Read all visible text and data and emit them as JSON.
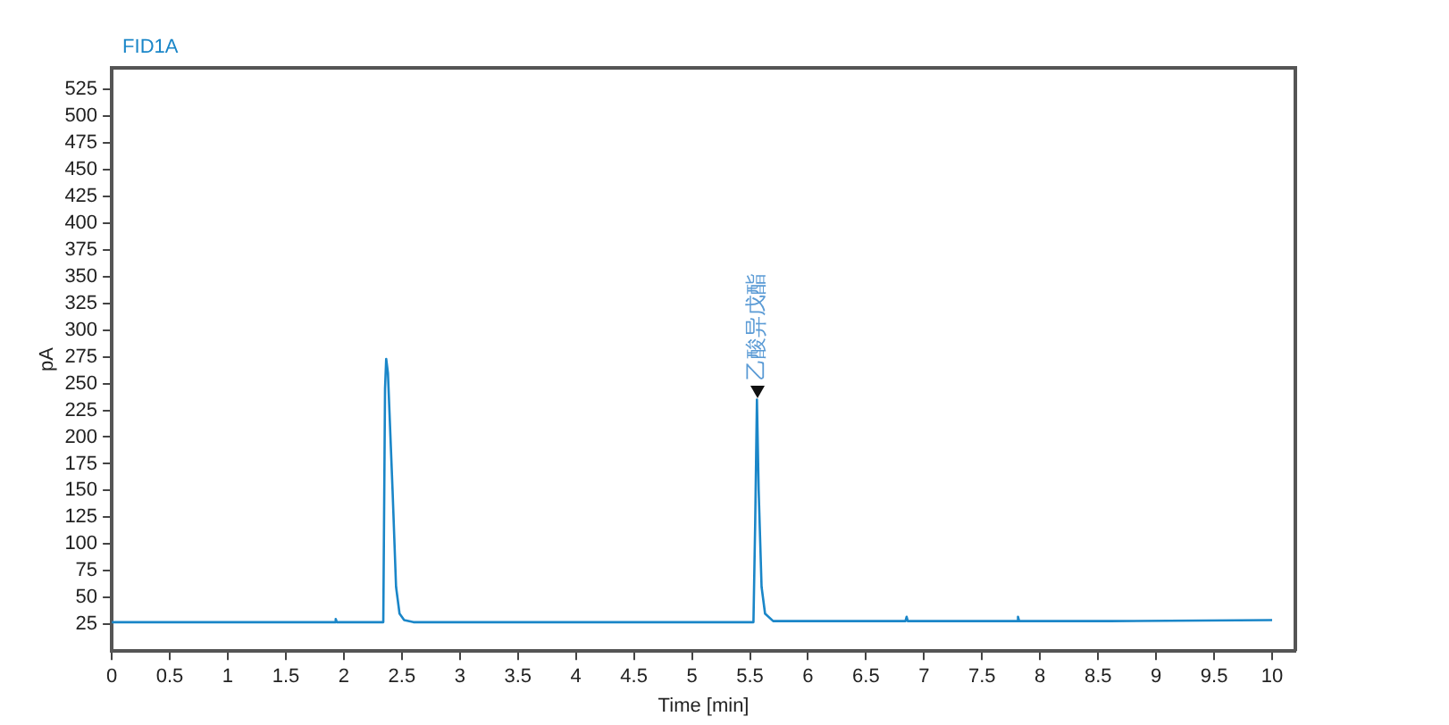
{
  "chart_data": {
    "type": "line",
    "title": "FID1A",
    "xlabel": "Time [min]",
    "ylabel": "pA",
    "x": [
      0,
      1.92,
      1.93,
      1.94,
      2.34,
      2.355,
      2.365,
      2.38,
      2.42,
      2.45,
      2.48,
      2.52,
      2.6,
      5.53,
      5.545,
      5.56,
      5.575,
      5.6,
      5.63,
      5.7,
      6.84,
      6.85,
      6.86,
      7.8,
      7.81,
      7.82,
      8.6,
      10
    ],
    "series": [
      {
        "color": "#1a86c8",
        "values": [
          27,
          27,
          30,
          27,
          27,
          245,
          273,
          260,
          150,
          60,
          35,
          29,
          27,
          27,
          120,
          235,
          150,
          60,
          35,
          28,
          28,
          32,
          28,
          28,
          32,
          28,
          28,
          29
        ]
      }
    ],
    "xlim": [
      0,
      10.2
    ],
    "xticks": [
      0,
      0.5,
      1,
      1.5,
      2,
      2.5,
      3,
      3.5,
      4,
      4.5,
      5,
      5.5,
      6,
      6.5,
      7,
      7.5,
      8,
      8.5,
      9,
      9.5,
      10
    ],
    "ylim": [
      0,
      545
    ],
    "yticks": [
      25,
      50,
      75,
      100,
      125,
      150,
      175,
      200,
      225,
      250,
      275,
      300,
      325,
      350,
      375,
      400,
      425,
      450,
      475,
      500,
      525
    ],
    "annotations": [
      {
        "text": "乙酸异戊酯",
        "x": 5.56,
        "y": 235
      }
    ],
    "grid": false,
    "legend": false,
    "marker": "none",
    "line_style": "solid"
  }
}
